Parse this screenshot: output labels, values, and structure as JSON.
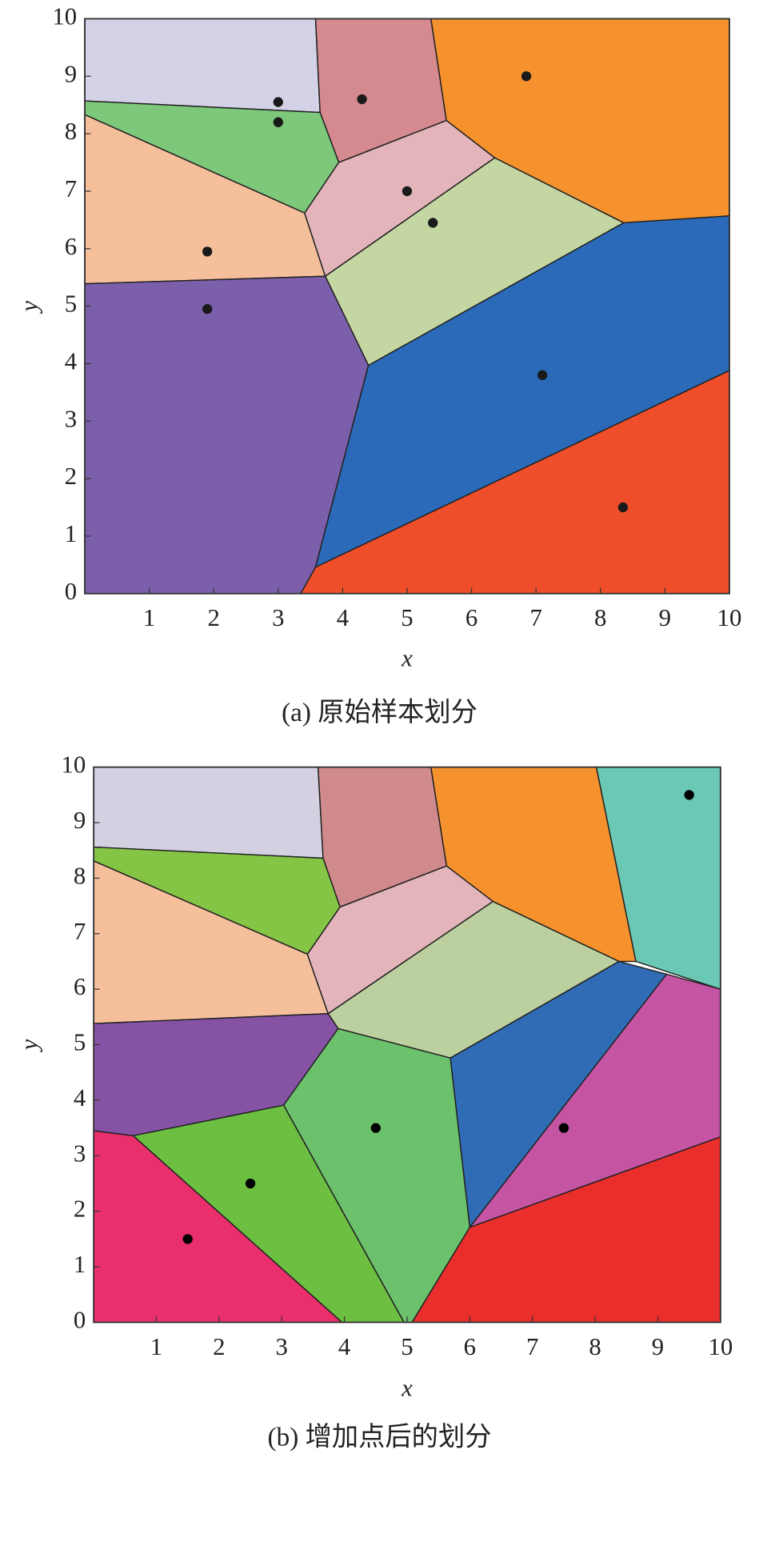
{
  "chart_data": [
    {
      "type": "voronoi",
      "caption": "(a) 原始样本划分",
      "x_label": "x",
      "y_label": "y",
      "xlim": [
        0,
        10
      ],
      "ylim": [
        0,
        10
      ],
      "xticks": [
        1,
        2,
        3,
        4,
        5,
        6,
        7,
        8,
        9,
        10
      ],
      "yticks": [
        0,
        1,
        2,
        3,
        4,
        5,
        6,
        7,
        8,
        9,
        10
      ],
      "point_color": "#1a1a1a",
      "x": [
        3,
        3,
        4.3,
        6.85,
        1.9,
        5,
        5.4,
        1.9,
        7.1,
        8.35
      ],
      "y": [
        8.55,
        8.2,
        8.6,
        9,
        5.95,
        7,
        6.45,
        4.95,
        3.8,
        1.5
      ],
      "regions": [
        {
          "color": "#d4d2e6",
          "x": [
            0,
            3.58,
            3.65,
            0
          ],
          "y": [
            10,
            10,
            8.37,
            8.57
          ]
        },
        {
          "color": "#d48a8e",
          "x": [
            3.58,
            5.37,
            5.61,
            3.94,
            3.65
          ],
          "y": [
            10,
            10,
            8.23,
            7.5,
            8.37
          ]
        },
        {
          "color": "#f5922e",
          "x": [
            5.37,
            10,
            10,
            8.36,
            6.36,
            5.61
          ],
          "y": [
            10,
            10,
            6.57,
            6.45,
            7.58,
            8.23
          ]
        },
        {
          "color": "#7dc87a",
          "x": [
            0,
            3.65,
            3.94,
            3.41,
            0
          ],
          "y": [
            8.57,
            8.37,
            7.5,
            6.62,
            8.33
          ]
        },
        {
          "color": "#f6bf9c",
          "x": [
            0,
            3.41,
            3.73,
            0
          ],
          "y": [
            8.33,
            6.62,
            5.52,
            5.39
          ]
        },
        {
          "color": "#e3b5ba",
          "x": [
            3.41,
            3.94,
            5.61,
            6.36,
            3.73
          ],
          "y": [
            6.62,
            7.5,
            8.23,
            7.58,
            5.52
          ]
        },
        {
          "color": "#c4d6a2",
          "x": [
            3.73,
            6.36,
            8.36,
            4.4
          ],
          "y": [
            5.52,
            7.58,
            6.45,
            3.97
          ]
        },
        {
          "color": "#7c5fab",
          "x": [
            0,
            3.73,
            4.4,
            3.58,
            3.35,
            0
          ],
          "y": [
            5.39,
            5.52,
            3.97,
            0.46,
            0,
            0
          ]
        },
        {
          "color": "#2a6ab8",
          "x": [
            4.4,
            8.36,
            10,
            10,
            3.58
          ],
          "y": [
            3.97,
            6.45,
            6.57,
            3.88,
            0.46
          ]
        },
        {
          "color": "#ee4f2a",
          "x": [
            3.58,
            10,
            10,
            3.35
          ],
          "y": [
            0.46,
            3.88,
            0,
            0
          ]
        }
      ]
    },
    {
      "type": "voronoi",
      "caption": "(b) 增加点后的划分",
      "x_label": "x",
      "y_label": "y",
      "xlim": [
        0,
        10
      ],
      "ylim": [
        0,
        10
      ],
      "xticks": [
        1,
        2,
        3,
        4,
        5,
        6,
        7,
        8,
        9,
        10
      ],
      "yticks": [
        0,
        1,
        2,
        3,
        4,
        5,
        6,
        7,
        8,
        9,
        10
      ],
      "point_color": "#000000",
      "x": [
        1.5,
        2.5,
        4.5,
        7.5,
        9.5
      ],
      "y": [
        1.5,
        2.5,
        3.5,
        3.5,
        9.5
      ],
      "regions": [
        {
          "color": "#d4d0e2",
          "x": [
            0,
            3.58,
            3.66,
            0
          ],
          "y": [
            10,
            10,
            8.36,
            8.56
          ]
        },
        {
          "color": "#d08a8c",
          "x": [
            3.58,
            5.38,
            5.63,
            3.93,
            3.66
          ],
          "y": [
            10,
            10,
            8.22,
            7.48,
            8.36
          ]
        },
        {
          "color": "#f5922e",
          "x": [
            5.38,
            8.02,
            8.65,
            8.38,
            6.37,
            5.63
          ],
          "y": [
            10,
            10,
            6.5,
            6.5,
            7.58,
            8.22
          ]
        },
        {
          "color": "#6bc8b4",
          "x": [
            8.02,
            10,
            10,
            8.65
          ],
          "y": [
            10,
            10,
            6.0,
            6.5
          ]
        },
        {
          "color": "#85c545",
          "x": [
            0,
            3.66,
            3.93,
            3.41,
            0
          ],
          "y": [
            8.56,
            8.36,
            7.48,
            6.63,
            8.31
          ]
        },
        {
          "color": "#f6bf9c",
          "x": [
            0,
            3.41,
            3.74,
            0
          ],
          "y": [
            8.31,
            6.63,
            5.56,
            5.38
          ]
        },
        {
          "color": "#e3b5ba",
          "x": [
            3.41,
            3.93,
            5.63,
            6.37,
            3.74
          ],
          "y": [
            6.63,
            7.48,
            8.22,
            7.58,
            5.56
          ]
        },
        {
          "color": "#bccf9e",
          "x": [
            3.74,
            6.37,
            8.38,
            5.69,
            3.9
          ],
          "y": [
            5.56,
            7.58,
            6.5,
            4.76,
            5.29
          ]
        },
        {
          "color": "#8552a4",
          "x": [
            0,
            3.74,
            3.9,
            3.03,
            0.63,
            0
          ],
          "y": [
            5.38,
            5.56,
            5.29,
            3.91,
            3.36,
            3.45
          ]
        },
        {
          "color": "#2f6cb5",
          "x": [
            5.69,
            8.38,
            9.14,
            6.0
          ],
          "y": [
            4.76,
            6.5,
            6.27,
            1.71
          ]
        },
        {
          "color": "#c554a3",
          "x": [
            9.14,
            10,
            10,
            6.0
          ],
          "y": [
            6.27,
            6.0,
            3.34,
            1.71
          ]
        },
        {
          "color": "#6cc16c",
          "x": [
            3.9,
            5.69,
            6.0,
            5.08,
            4.95,
            3.03
          ],
          "y": [
            5.29,
            4.76,
            1.71,
            0,
            0,
            3.91
          ]
        },
        {
          "color": "#6cbf40",
          "x": [
            0.63,
            3.03,
            4.95,
            3.96
          ],
          "y": [
            3.36,
            3.91,
            0,
            0
          ]
        },
        {
          "color": "#ea2f6d",
          "x": [
            0,
            0.63,
            3.96,
            0
          ],
          "y": [
            3.45,
            3.36,
            0,
            0
          ]
        },
        {
          "color": "#ea2e2b",
          "x": [
            6.0,
            10,
            10,
            5.08
          ],
          "y": [
            1.71,
            3.34,
            0,
            0
          ]
        }
      ]
    }
  ]
}
